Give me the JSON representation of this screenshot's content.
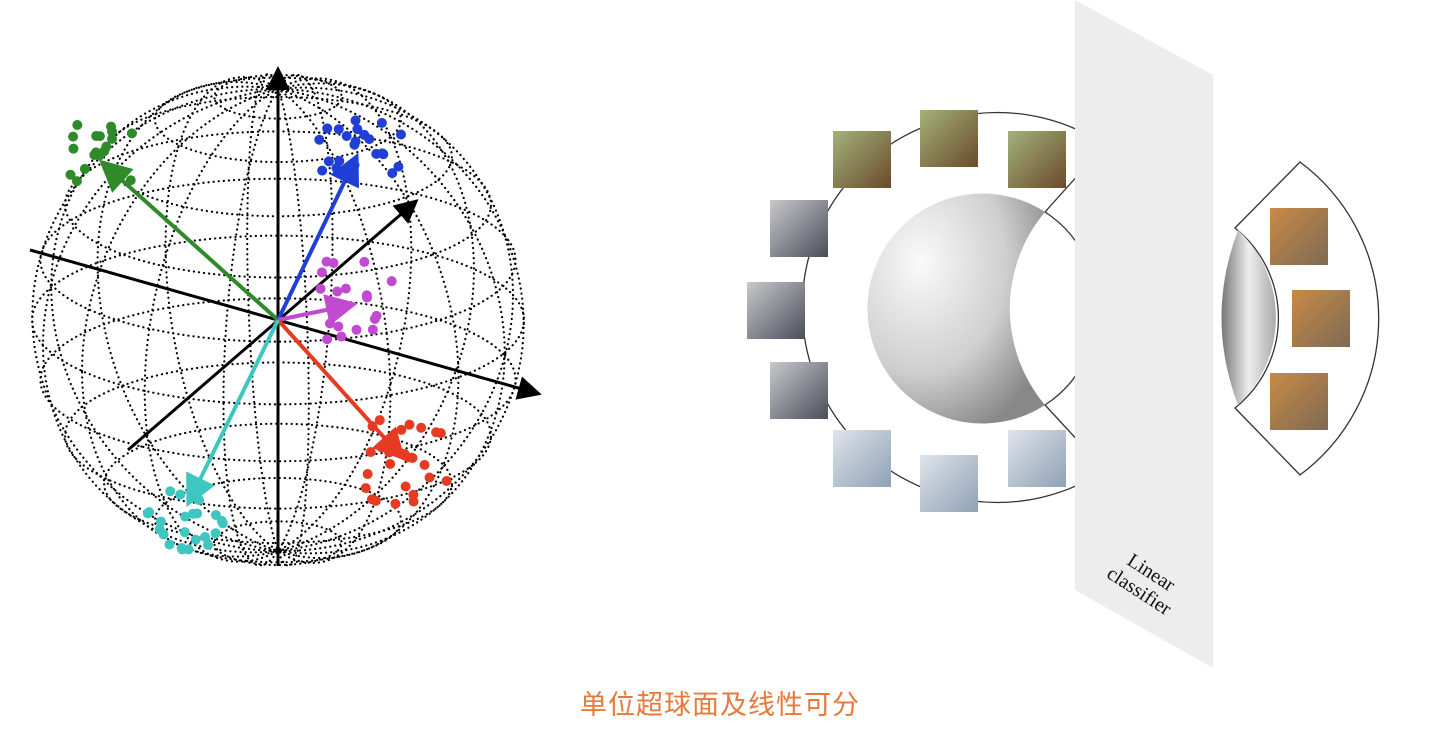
{
  "caption": "单位超球面及线性可分",
  "classifier_label": "Linear classifier",
  "colors": {
    "caption": "#e8793a",
    "green": "#2f8a2a",
    "blue": "#1f3fd6",
    "magenta": "#c04bd0",
    "red": "#e63b22",
    "cyan": "#3ec6c0",
    "plane": "#ededed"
  },
  "images": [
    "dog-photo",
    "dog-photo",
    "dog-photo",
    "car-photo",
    "car-photo",
    "car-photo",
    "airplane-photo",
    "airplane-photo",
    "airplane-photo",
    "cat-photo",
    "cat-photo",
    "cat-photo"
  ]
}
